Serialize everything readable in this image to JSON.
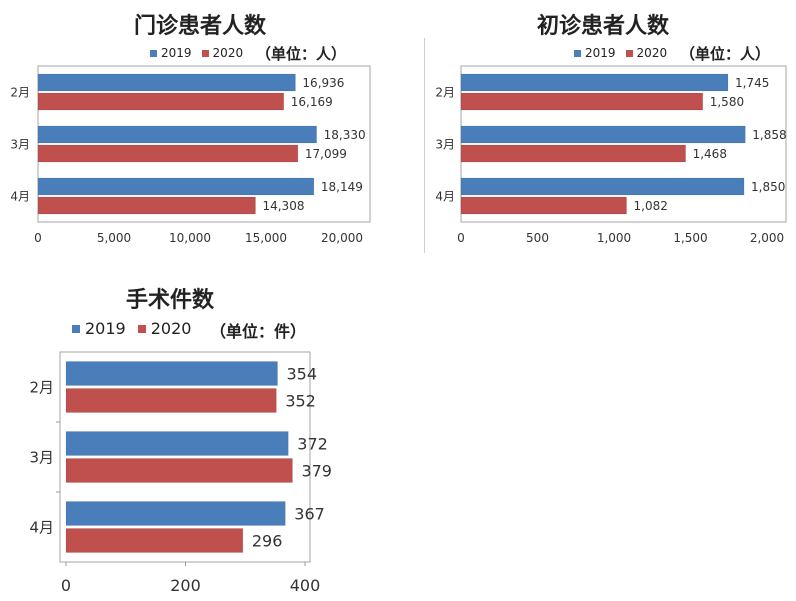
{
  "colors": {
    "s2019": "#4a7ebb",
    "s2020": "#c0504d",
    "frame": "#a6a6a6"
  },
  "legend": {
    "s2019": "2019",
    "s2020": "2020"
  },
  "chart_data": [
    {
      "type": "bar",
      "orientation": "horizontal",
      "title": "门诊患者人数",
      "unit": "（单位：人）",
      "categories": [
        "2月",
        "3月",
        "4月"
      ],
      "series": [
        {
          "name": "2019",
          "values": [
            16936,
            18330,
            18149
          ],
          "labels": [
            "16,936",
            "18,330",
            "18,149"
          ]
        },
        {
          "name": "2020",
          "values": [
            16169,
            17099,
            14308
          ],
          "labels": [
            "16,169",
            "17,099",
            "14,308"
          ]
        }
      ],
      "xlim": [
        0,
        20000
      ],
      "xticks": [
        0,
        5000,
        10000,
        15000,
        20000
      ],
      "xtick_labels": [
        "0",
        "5,000",
        "10,000",
        "15,000",
        "20,000"
      ],
      "legend_position": "top-center",
      "grid": false
    },
    {
      "type": "bar",
      "orientation": "horizontal",
      "title": "初诊患者人数",
      "unit": "（单位：人）",
      "categories": [
        "2月",
        "3月",
        "4月"
      ],
      "series": [
        {
          "name": "2019",
          "values": [
            1745,
            1858,
            1850
          ],
          "labels": [
            "1,745",
            "1,858",
            "1,850"
          ]
        },
        {
          "name": "2020",
          "values": [
            1580,
            1468,
            1082
          ],
          "labels": [
            "1,580",
            "1,468",
            "1,082"
          ]
        }
      ],
      "xlim": [
        0,
        2000
      ],
      "xticks": [
        0,
        500,
        1000,
        1500,
        2000
      ],
      "xtick_labels": [
        "0",
        "500",
        "1,000",
        "1,500",
        "2,000"
      ],
      "legend_position": "top-center",
      "grid": false
    },
    {
      "type": "bar",
      "orientation": "horizontal",
      "title": "手术件数",
      "unit": "（单位：件）",
      "categories": [
        "2月",
        "3月",
        "4月"
      ],
      "series": [
        {
          "name": "2019",
          "values": [
            354,
            372,
            367
          ],
          "labels": [
            "354",
            "372",
            "367"
          ]
        },
        {
          "name": "2020",
          "values": [
            352,
            379,
            296
          ],
          "labels": [
            "352",
            "379",
            "296"
          ]
        }
      ],
      "xlim": [
        0,
        400
      ],
      "xticks": [
        0,
        200,
        400
      ],
      "xtick_labels": [
        "0",
        "200",
        "400"
      ],
      "legend_position": "top-left",
      "grid": false
    }
  ]
}
